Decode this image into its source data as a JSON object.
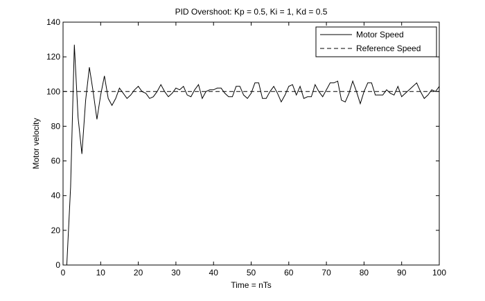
{
  "chart_data": {
    "type": "line",
    "title": "PID Overshoot: Kp = 0.5, Ki = 1, Kd = 0.5",
    "xlabel": "Time = nTs",
    "ylabel": "Motor velocity",
    "xlim": [
      0,
      100
    ],
    "ylim": [
      0,
      140
    ],
    "x_ticks": [
      0,
      10,
      20,
      30,
      40,
      50,
      60,
      70,
      80,
      90,
      100
    ],
    "y_ticks": [
      0,
      20,
      40,
      60,
      80,
      100,
      120,
      140
    ],
    "grid": false,
    "legend_position": "top-right",
    "series": [
      {
        "name": "Motor Speed",
        "style": "solid",
        "color": "#000000",
        "x": [
          1,
          2,
          3,
          4,
          5,
          6,
          7,
          8,
          9,
          10,
          11,
          12,
          13,
          14,
          15,
          16,
          17,
          18,
          19,
          20,
          21,
          22,
          23,
          24,
          25,
          26,
          27,
          28,
          29,
          30,
          31,
          32,
          33,
          34,
          35,
          36,
          37,
          38,
          39,
          40,
          41,
          42,
          43,
          44,
          45,
          46,
          47,
          48,
          49,
          50,
          51,
          52,
          53,
          54,
          55,
          56,
          57,
          58,
          59,
          60,
          61,
          62,
          63,
          64,
          65,
          66,
          67,
          68,
          69,
          70,
          71,
          72,
          73,
          74,
          75,
          76,
          77,
          78,
          79,
          80,
          81,
          82,
          83,
          84,
          85,
          86,
          87,
          88,
          89,
          90,
          91,
          92,
          93,
          94,
          95,
          96,
          97,
          98,
          99,
          100
        ],
        "y": [
          0,
          45,
          127,
          85,
          64,
          95,
          114,
          100,
          84,
          98,
          109,
          96,
          92,
          96,
          102,
          99,
          96,
          98,
          101,
          103,
          100,
          99,
          96,
          97,
          100,
          104,
          100,
          97,
          99,
          102,
          101,
          103,
          98,
          97,
          101,
          104,
          96,
          100,
          101,
          101,
          102,
          102,
          99,
          97,
          97,
          103,
          103,
          98,
          96,
          99,
          105,
          105,
          96,
          96,
          100,
          103,
          99,
          94,
          98,
          103,
          104,
          98,
          103,
          96,
          97,
          97,
          104,
          100,
          97,
          101,
          105,
          105,
          106,
          95,
          94,
          99,
          106,
          100,
          93,
          100,
          105,
          105,
          98,
          98,
          98,
          101,
          99,
          98,
          103,
          97,
          99,
          101,
          103,
          105,
          100,
          96,
          98,
          101,
          100,
          103
        ]
      },
      {
        "name": "Reference Speed",
        "style": "dashed",
        "color": "#000000",
        "x": [
          0,
          100
        ],
        "y": [
          100,
          100
        ]
      }
    ]
  }
}
